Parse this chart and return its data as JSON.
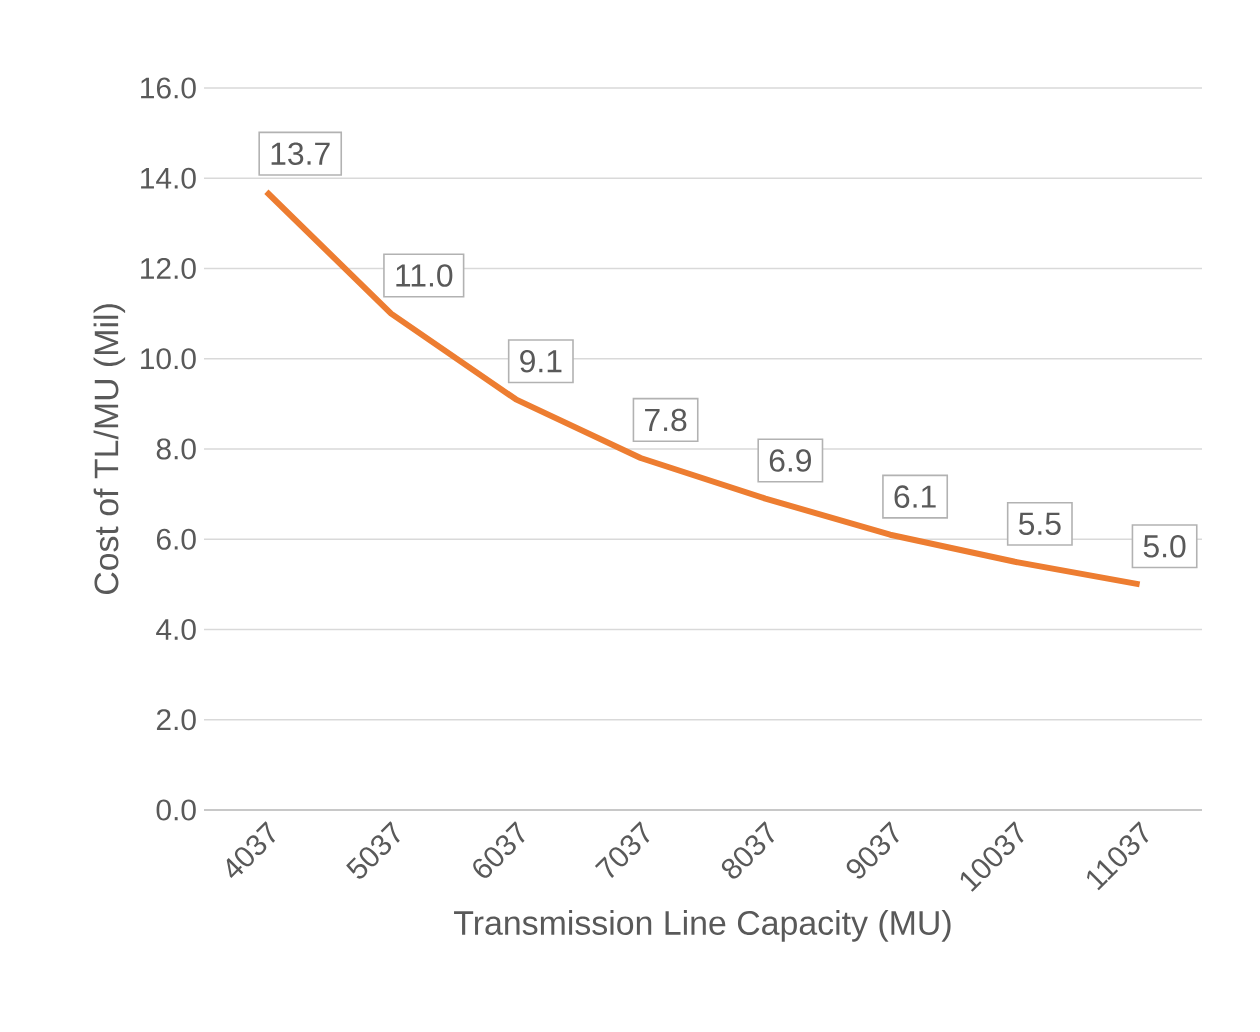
{
  "chart_data": {
    "type": "line",
    "xlabel": "Transmission Line Capacity (MU)",
    "ylabel": "Cost of TL/MU (Mil)",
    "categories": [
      "4037",
      "5037",
      "6037",
      "7037",
      "8037",
      "9037",
      "10037",
      "11037"
    ],
    "values": [
      13.7,
      11.0,
      9.1,
      7.8,
      6.9,
      6.1,
      5.5,
      5.0
    ],
    "value_labels": [
      "13.7",
      "11.0",
      "9.1",
      "7.8",
      "6.9",
      "6.1",
      "5.5",
      "5.0"
    ],
    "color": "#ed7d31",
    "ylim": [
      0,
      16
    ],
    "yticks": [
      {
        "value": 0,
        "label": "0.0"
      },
      {
        "value": 2,
        "label": "2.0"
      },
      {
        "value": 4,
        "label": "4.0"
      },
      {
        "value": 6,
        "label": "6.0"
      },
      {
        "value": 8,
        "label": "8.0"
      },
      {
        "value": 10,
        "label": "10.0"
      },
      {
        "value": 12,
        "label": "12.0"
      },
      {
        "value": 14,
        "label": "14.0"
      },
      {
        "value": 16,
        "label": "16.0"
      }
    ],
    "grid": "y",
    "marker": "none",
    "line_style": "solid"
  }
}
